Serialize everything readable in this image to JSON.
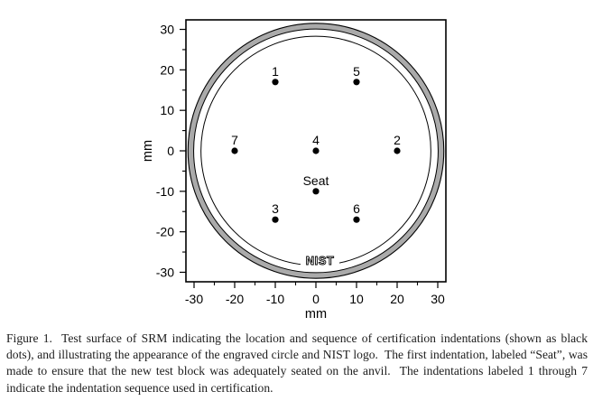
{
  "figure": {
    "caption": "Figure 1.  Test surface of SRM indicating the location and sequence of certification indentations (shown as black dots), and illustrating the appearance of the engraved circle and NIST logo.  The first indentation, labeled “Seat”, was made to ensure that the new test block was adequately seated on the anvil.  The indentations labeled 1 through 7 indicate the indentation sequence used in certification."
  },
  "chart_data": {
    "type": "scatter",
    "title": "",
    "xlabel": "mm",
    "ylabel": "mm",
    "xlim": [
      -32,
      32
    ],
    "ylim": [
      -32.35,
      32.35
    ],
    "xticks": [
      -30,
      -20,
      -10,
      0,
      10,
      20,
      30
    ],
    "yticks": [
      -30,
      -20,
      -10,
      0,
      10,
      20,
      30
    ],
    "minor_xticks": [
      -25,
      -15,
      -5,
      5,
      15,
      25
    ],
    "minor_yticks": [
      -25,
      -15,
      -5,
      5,
      15,
      25
    ],
    "grid": false,
    "legend": false,
    "marker": {
      "shape": "circle",
      "color": "#000000",
      "radius_px": 3.6
    },
    "points": [
      {
        "label": "1",
        "x": -10,
        "y": 17
      },
      {
        "label": "2",
        "x": 20,
        "y": 0
      },
      {
        "label": "3",
        "x": -10,
        "y": -17
      },
      {
        "label": "4",
        "x": 0,
        "y": 0
      },
      {
        "label": "5",
        "x": 10,
        "y": 17
      },
      {
        "label": "6",
        "x": 10,
        "y": -17
      },
      {
        "label": "7",
        "x": -20,
        "y": 0
      },
      {
        "label": "Seat",
        "x": 0,
        "y": -10
      }
    ],
    "engraved_ring": {
      "r_outer_mm": 31.5,
      "r_inner_mm": 30.1,
      "fill": "#aaaaaa",
      "stroke": "#000000"
    },
    "inner_circle": {
      "r_mm": 28.3,
      "stroke": "#000000"
    },
    "logo": {
      "text": "NIST",
      "x_mm": 1,
      "y_mm": -27.1
    }
  }
}
